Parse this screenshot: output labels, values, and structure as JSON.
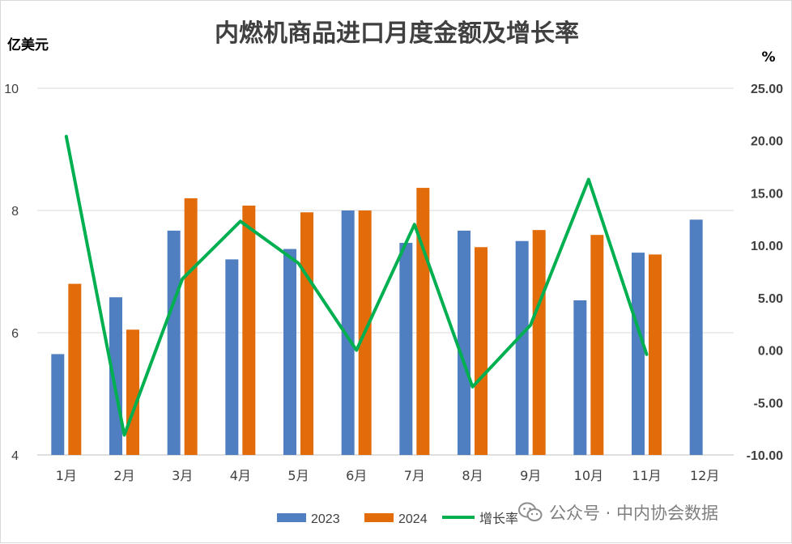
{
  "chart_data": {
    "type": "bar",
    "title": "内燃机商品进口月度金额及增长率",
    "y_left_unit": "亿美元",
    "y_right_unit": "%",
    "categories": [
      "1月",
      "2月",
      "3月",
      "4月",
      "5月",
      "6月",
      "7月",
      "8月",
      "9月",
      "10月",
      "11月",
      "12月"
    ],
    "series": [
      {
        "name": "2023",
        "type": "bar",
        "axis": "left",
        "color": "#4f7fc0",
        "values": [
          5.65,
          6.58,
          7.67,
          7.2,
          7.37,
          8.0,
          7.47,
          7.67,
          7.5,
          6.53,
          7.31,
          7.85
        ]
      },
      {
        "name": "2024",
        "type": "bar",
        "axis": "left",
        "color": "#e36c0a",
        "values": [
          6.8,
          6.05,
          8.2,
          8.08,
          7.97,
          8.0,
          8.37,
          7.4,
          7.68,
          7.6,
          7.28,
          null
        ]
      },
      {
        "name": "增长率",
        "type": "line",
        "axis": "right",
        "color": "#00b050",
        "values": [
          20.4,
          -8.1,
          6.8,
          12.3,
          8.3,
          0.0,
          12.0,
          -3.5,
          2.4,
          16.3,
          -0.4,
          null
        ]
      }
    ],
    "y_left": {
      "min": 4,
      "max": 10,
      "ticks": [
        "4",
        "6",
        "8",
        "10"
      ],
      "tick_values": [
        4,
        6,
        8,
        10
      ]
    },
    "y_right": {
      "min": -10,
      "max": 25,
      "ticks": [
        "-10.00",
        "-5.00",
        "0.00",
        "5.00",
        "10.00",
        "15.00",
        "20.00",
        "25.00"
      ],
      "tick_values": [
        -10,
        -5,
        0,
        5,
        10,
        15,
        20,
        25
      ]
    },
    "grid": true,
    "legend_position": "bottom"
  },
  "watermark": {
    "text": "公众号 · 中内协会数据",
    "icon": "wechat-icon"
  }
}
